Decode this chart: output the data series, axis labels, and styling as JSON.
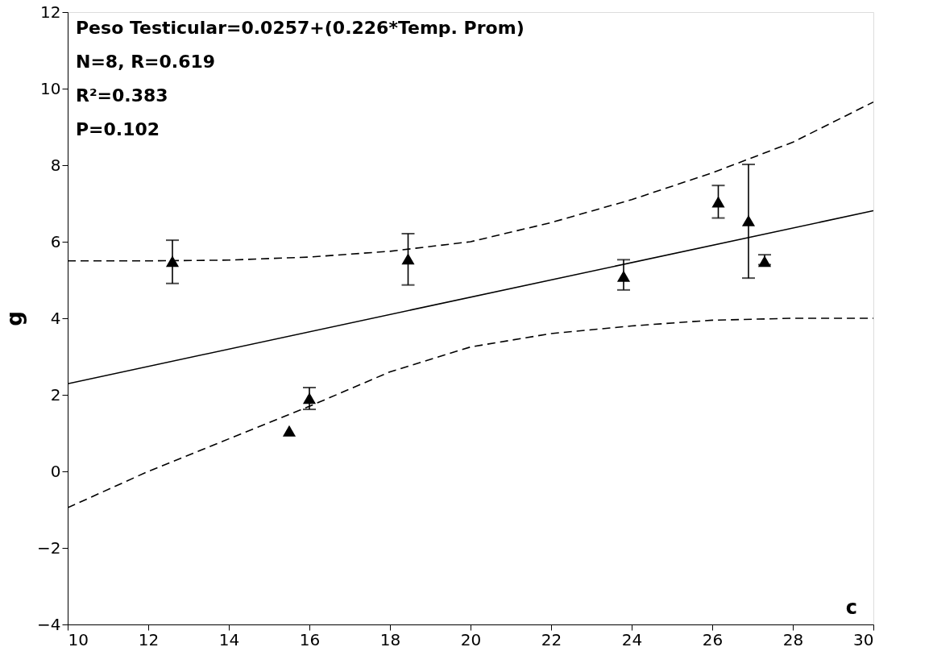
{
  "chart_data": {
    "type": "scatter",
    "ylabel": "g",
    "annotations": [
      "Peso Testicular=0.0257+(0.226*Temp. Prom)",
      "N=8, R=0.619",
      "R²=0.383",
      "P=0.102",
      "c"
    ],
    "xlim": [
      10,
      30
    ],
    "xticks": [
      10,
      12,
      14,
      16,
      18,
      20,
      22,
      24,
      26,
      28,
      30
    ],
    "ylim": [
      -4,
      12
    ],
    "yticks": [
      -4,
      -2,
      0,
      2,
      4,
      6,
      8,
      10,
      12
    ],
    "grid": false,
    "marker": "triangle",
    "series": [
      {
        "color": "#000000",
        "x": [
          12.6,
          15.5,
          16.0,
          18.45,
          23.8,
          26.15,
          26.9,
          27.3
        ],
        "values": [
          5.49,
          1.06,
          1.91,
          5.55,
          5.1,
          7.04,
          6.55,
          5.49
        ],
        "errors": [
          [
            4.91,
            6.04
          ],
          null,
          [
            1.62,
            2.19
          ],
          [
            4.87,
            6.21
          ],
          [
            4.74,
            5.53
          ],
          [
            6.62,
            7.47
          ],
          [
            5.05,
            8.02
          ],
          [
            5.4,
            5.66
          ]
        ]
      },
      {
        "type": "line",
        "color": "#000000",
        "line_style": "solid",
        "marker": "none",
        "x": [
          10,
          30
        ],
        "values": [
          2.29,
          6.81
        ]
      },
      {
        "type": "line",
        "color": "#000000",
        "line_style": "dashed",
        "marker": "none",
        "x": [
          10,
          12,
          14,
          16,
          18,
          20,
          22,
          24,
          26,
          28,
          30
        ],
        "values": [
          5.5,
          5.5,
          5.52,
          5.6,
          5.75,
          6.0,
          6.5,
          7.1,
          7.8,
          8.6,
          9.65
        ]
      },
      {
        "type": "line",
        "color": "#000000",
        "line_style": "dashed",
        "marker": "none",
        "x": [
          10,
          12,
          14,
          16,
          18,
          20,
          22,
          24,
          26,
          28,
          30
        ],
        "values": [
          -0.95,
          0.0,
          0.85,
          1.7,
          2.6,
          3.25,
          3.6,
          3.8,
          3.95,
          4.0,
          4.0
        ]
      }
    ]
  }
}
